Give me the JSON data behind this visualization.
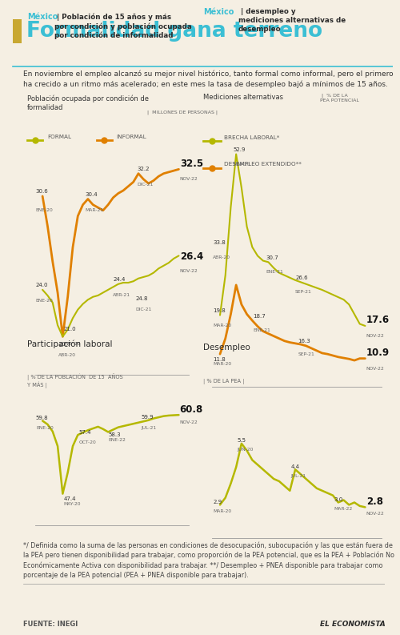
{
  "bg_color": "#f5efe3",
  "title": "Formalidad gana terreno",
  "title_color": "#3bbfd4",
  "title_rect_color": "#c8a832",
  "separator_color": "#3bbfd4",
  "subtitle": "En noviembre el empleo alcanzó su mejor nivel histórico, tanto formal como informal, pero el primero ha crecido a un ritmo más acelerado; en este mes la tasa de desempleo bajó a mínimos de 15 años.",
  "chart1_title_mexico": "México",
  "chart1_title_rest": " | Población de 15 años y más\npor condición y población ocupada\npor condición de informalidad",
  "chart1_subtitle": "Población ocupada por condición de\nformalidad",
  "chart1_subtitle2": " MILLONES DE PERSONAS",
  "chart1_legend_formal": "FORMAL",
  "chart1_legend_informal": "INFORMAL",
  "formal_color": "#b5b800",
  "informal_color": "#e08000",
  "formal_data": [
    [
      0,
      24.0
    ],
    [
      1,
      23.6
    ],
    [
      2,
      23.1
    ],
    [
      3,
      21.5
    ],
    [
      4,
      20.7
    ],
    [
      5,
      21.2
    ],
    [
      6,
      22.0
    ],
    [
      7,
      22.6
    ],
    [
      8,
      23.0
    ],
    [
      9,
      23.3
    ],
    [
      10,
      23.5
    ],
    [
      11,
      23.6
    ],
    [
      12,
      23.8
    ],
    [
      13,
      24.0
    ],
    [
      14,
      24.2
    ],
    [
      15,
      24.4
    ],
    [
      16,
      24.5
    ],
    [
      17,
      24.5
    ],
    [
      18,
      24.6
    ],
    [
      19,
      24.8
    ],
    [
      20,
      24.9
    ],
    [
      21,
      25.0
    ],
    [
      22,
      25.2
    ],
    [
      23,
      25.5
    ],
    [
      24,
      25.7
    ],
    [
      25,
      25.9
    ],
    [
      26,
      26.2
    ],
    [
      27,
      26.4
    ]
  ],
  "informal_data": [
    [
      0,
      30.6
    ],
    [
      1,
      28.5
    ],
    [
      2,
      26.0
    ],
    [
      3,
      23.8
    ],
    [
      4,
      20.7
    ],
    [
      5,
      23.5
    ],
    [
      6,
      27.0
    ],
    [
      7,
      29.2
    ],
    [
      8,
      30.0
    ],
    [
      9,
      30.4
    ],
    [
      10,
      30.0
    ],
    [
      11,
      29.8
    ],
    [
      12,
      29.6
    ],
    [
      13,
      30.0
    ],
    [
      14,
      30.5
    ],
    [
      15,
      30.8
    ],
    [
      16,
      31.0
    ],
    [
      17,
      31.3
    ],
    [
      18,
      31.6
    ],
    [
      19,
      32.2
    ],
    [
      20,
      31.8
    ],
    [
      21,
      31.5
    ],
    [
      22,
      31.7
    ],
    [
      23,
      32.0
    ],
    [
      24,
      32.2
    ],
    [
      25,
      32.3
    ],
    [
      26,
      32.4
    ],
    [
      27,
      32.5
    ]
  ],
  "chart2_title_mexico": "México",
  "chart2_title_rest": " | desempleo y\nmediciones alternativas de\ndesempleo",
  "chart2_subtitle": "Mediciones alternativas",
  "chart2_subtitle2": " % DE LA\nPEA POTENCIAL",
  "brecha_legend": "BRECHA LABORAL*",
  "desempleo_ext_legend": "DESEMPLEO EXTENDIDO**",
  "brecha_color": "#b5b800",
  "desempleo_ext_color": "#e08000",
  "brecha_data": [
    [
      0,
      19.8
    ],
    [
      1,
      28.0
    ],
    [
      2,
      42.0
    ],
    [
      3,
      52.9
    ],
    [
      4,
      46.0
    ],
    [
      5,
      38.0
    ],
    [
      6,
      33.8
    ],
    [
      7,
      32.0
    ],
    [
      8,
      31.0
    ],
    [
      9,
      30.7
    ],
    [
      10,
      29.5
    ],
    [
      11,
      28.5
    ],
    [
      12,
      28.0
    ],
    [
      13,
      27.5
    ],
    [
      14,
      27.0
    ],
    [
      15,
      26.6
    ],
    [
      16,
      26.2
    ],
    [
      17,
      25.8
    ],
    [
      18,
      25.4
    ],
    [
      19,
      25.0
    ],
    [
      20,
      24.5
    ],
    [
      21,
      24.0
    ],
    [
      22,
      23.5
    ],
    [
      23,
      23.0
    ],
    [
      24,
      22.0
    ],
    [
      25,
      20.0
    ],
    [
      26,
      18.0
    ],
    [
      27,
      17.6
    ]
  ],
  "desempleo_ext_data": [
    [
      0,
      11.8
    ],
    [
      1,
      15.0
    ],
    [
      2,
      20.0
    ],
    [
      3,
      26.0
    ],
    [
      4,
      22.0
    ],
    [
      5,
      20.0
    ],
    [
      6,
      18.7
    ],
    [
      7,
      17.5
    ],
    [
      8,
      16.5
    ],
    [
      9,
      16.0
    ],
    [
      10,
      15.5
    ],
    [
      11,
      15.0
    ],
    [
      12,
      14.5
    ],
    [
      13,
      14.2
    ],
    [
      14,
      14.0
    ],
    [
      15,
      13.8
    ],
    [
      16,
      13.5
    ],
    [
      17,
      13.0
    ],
    [
      18,
      12.5
    ],
    [
      19,
      12.0
    ],
    [
      20,
      11.8
    ],
    [
      21,
      11.5
    ],
    [
      22,
      11.2
    ],
    [
      23,
      11.0
    ],
    [
      24,
      10.8
    ],
    [
      25,
      10.5
    ],
    [
      26,
      10.9
    ],
    [
      27,
      10.9
    ]
  ],
  "chart3_title": "Participación laboral",
  "chart3_subtitle": "% DE LA POBLACIÓN  DE 15  AÑOS\nY MÁS",
  "participacion_color": "#b5b800",
  "participacion_data": [
    [
      0,
      59.8
    ],
    [
      1,
      59.2
    ],
    [
      2,
      58.0
    ],
    [
      3,
      55.5
    ],
    [
      4,
      47.4
    ],
    [
      5,
      51.0
    ],
    [
      6,
      55.5
    ],
    [
      7,
      57.4
    ],
    [
      8,
      57.8
    ],
    [
      9,
      58.2
    ],
    [
      10,
      58.5
    ],
    [
      11,
      58.8
    ],
    [
      12,
      58.4
    ],
    [
      13,
      57.9
    ],
    [
      14,
      58.3
    ],
    [
      15,
      58.7
    ],
    [
      16,
      58.9
    ],
    [
      17,
      59.1
    ],
    [
      18,
      59.3
    ],
    [
      19,
      59.5
    ],
    [
      20,
      59.7
    ],
    [
      21,
      59.9
    ],
    [
      22,
      60.2
    ],
    [
      23,
      60.4
    ],
    [
      24,
      60.6
    ],
    [
      25,
      60.7
    ],
    [
      26,
      60.75
    ],
    [
      27,
      60.8
    ]
  ],
  "chart4_title": "Desempleo",
  "chart4_subtitle": "% DE LA PEA",
  "desempleo_color": "#b5b800",
  "desempleo_data": [
    [
      0,
      2.9
    ],
    [
      1,
      3.2
    ],
    [
      2,
      3.8
    ],
    [
      3,
      4.5
    ],
    [
      4,
      5.5
    ],
    [
      5,
      5.2
    ],
    [
      6,
      4.8
    ],
    [
      7,
      4.6
    ],
    [
      8,
      4.4
    ],
    [
      9,
      4.2
    ],
    [
      10,
      4.0
    ],
    [
      11,
      3.9
    ],
    [
      12,
      3.7
    ],
    [
      13,
      3.5
    ],
    [
      14,
      4.4
    ],
    [
      15,
      4.2
    ],
    [
      16,
      4.0
    ],
    [
      17,
      3.8
    ],
    [
      18,
      3.6
    ],
    [
      19,
      3.5
    ],
    [
      20,
      3.4
    ],
    [
      21,
      3.3
    ],
    [
      22,
      3.0
    ],
    [
      23,
      3.1
    ],
    [
      24,
      2.9
    ],
    [
      25,
      3.0
    ],
    [
      26,
      2.85
    ],
    [
      27,
      2.8
    ]
  ],
  "footer_text": "*/ Definida como la suma de las personas en condiciones de desocupación, subocupación y las que están fuera de la PEA pero tienen disponibilidad para trabajar, como proporción de la PEA potencial, que es la PEA + Población No Económicamente Activa con disponibilidad para trabajar. **/ Desempleo + PNEA disponible para trabajar como porcentaje de la PEA potencial (PEA + PNEA disponible para trabajar).",
  "footer_source": "FUENTE: INEGI",
  "footer_brand": "EL ECONOMISTA"
}
